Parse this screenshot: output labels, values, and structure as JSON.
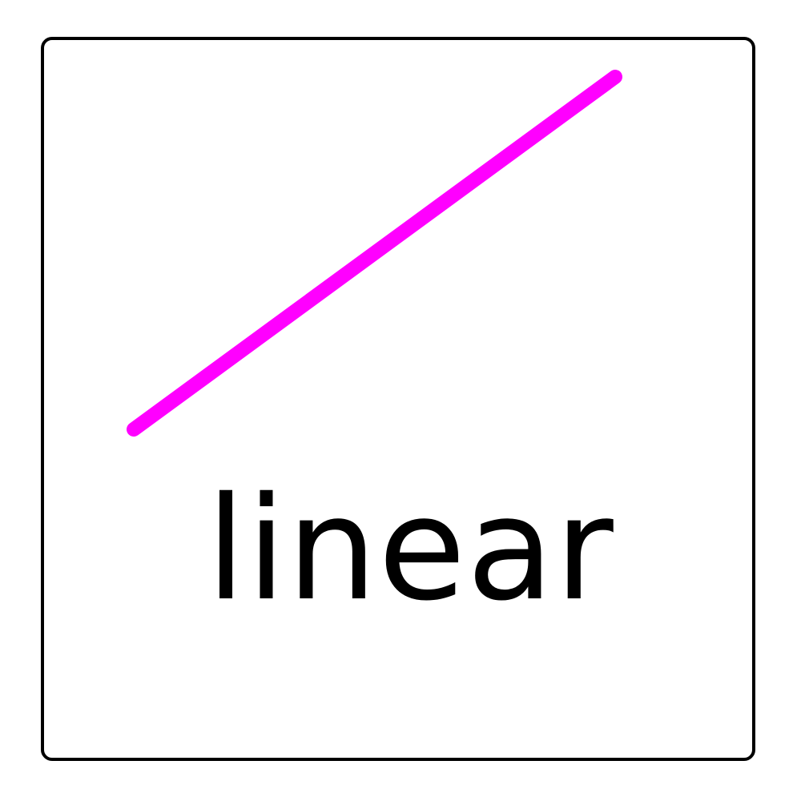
{
  "icon": {
    "name": "linear-icon",
    "label": "linear",
    "line_color": "#ff00ff",
    "frame_color": "#000000",
    "background_color": "#ffffff",
    "text_color": "#000000"
  }
}
